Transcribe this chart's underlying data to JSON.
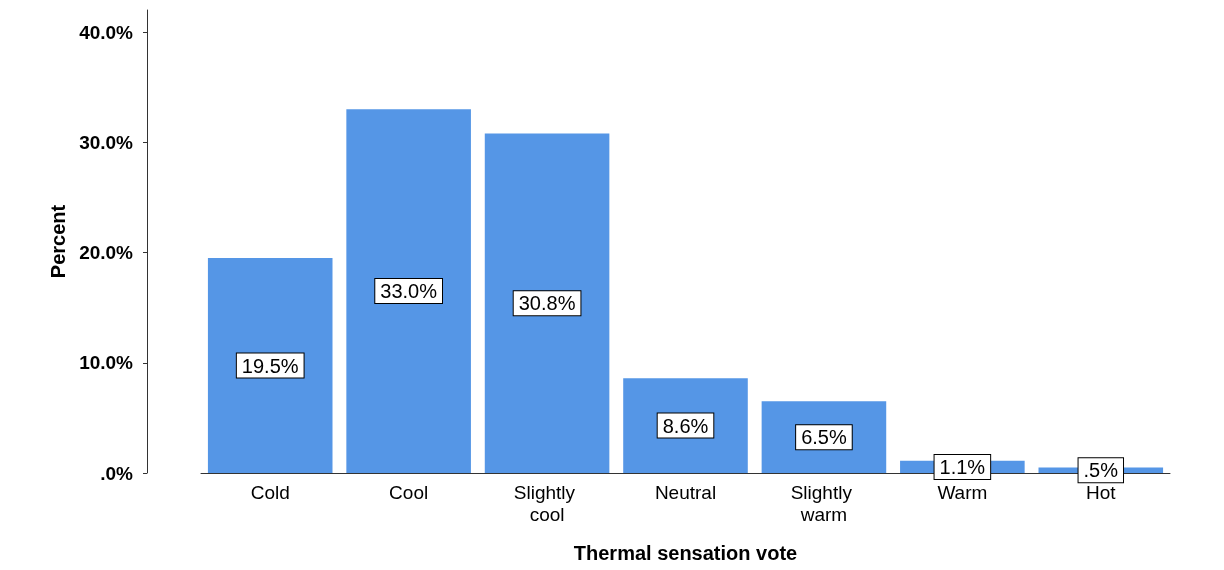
{
  "chart_data": {
    "type": "bar",
    "xlabel": "Thermal sensation vote",
    "ylabel": "Percent",
    "categories": [
      "Cold",
      "Cool",
      "Slightly cool",
      "Neutral",
      "Slightly warm",
      "Warm",
      "Hot"
    ],
    "values": [
      19.5,
      33.0,
      30.8,
      8.6,
      6.5,
      1.1,
      0.5
    ],
    "value_labels": [
      "19.5%",
      "33.0%",
      "30.8%",
      "8.6%",
      "6.5%",
      "1.1%",
      ".5%"
    ],
    "color": "#5596e6",
    "ylim": [
      0,
      42
    ],
    "yticks": [
      {
        "value": 0,
        "label": ".0%"
      },
      {
        "value": 10,
        "label": "10.0%"
      },
      {
        "value": 20,
        "label": "20.0%"
      },
      {
        "value": 30,
        "label": "30.0%"
      },
      {
        "value": 40,
        "label": "40.0%"
      }
    ],
    "grid": false
  }
}
